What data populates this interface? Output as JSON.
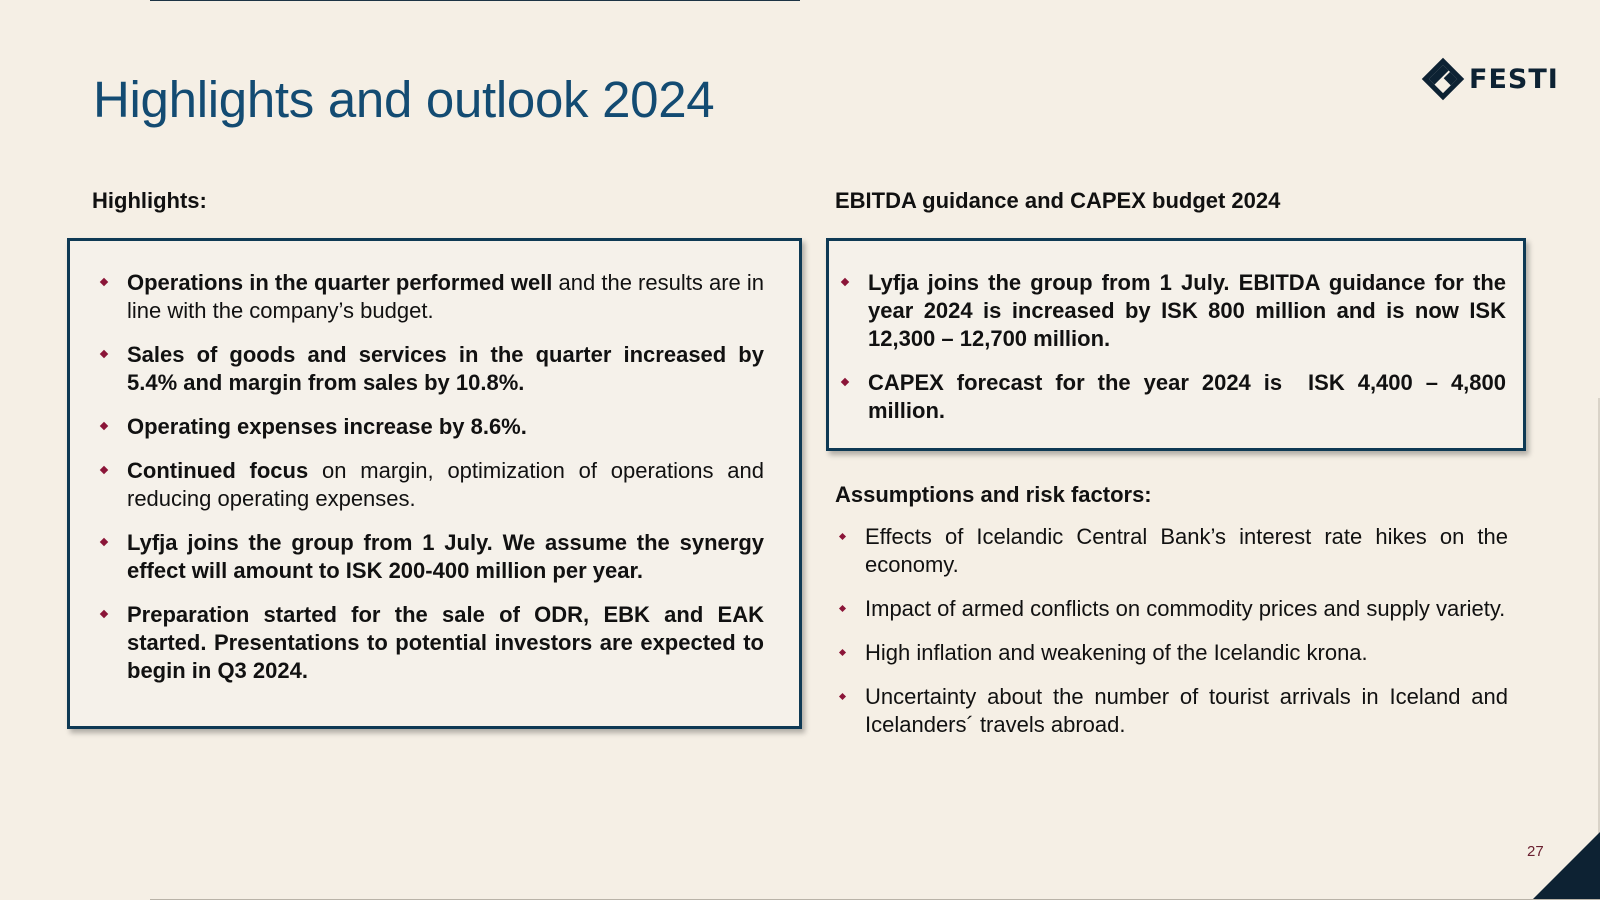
{
  "slide": {
    "title": "Highlights and outlook 2024",
    "logo_text": "FESTI",
    "page_number": "27"
  },
  "highlights": {
    "heading": "Highlights:",
    "items": [
      {
        "bold": "Operations in the quarter performed well",
        "rest": " and the results are in line with the company’s budget."
      },
      {
        "bold": "Sales of goods and services in the quarter increased by 5.4% and margin from sales by 10.8%.",
        "rest": ""
      },
      {
        "bold": "Operating expenses increase by 8.6%.",
        "rest": ""
      },
      {
        "bold": "Continued focus",
        "rest": " on margin, optimization of operations and reducing operating expenses."
      },
      {
        "bold": "Lyfja joins the group from 1 July. We assume the synergy effect will amount to ISK 200-400 million per year.",
        "rest": ""
      },
      {
        "bold": "Preparation started for the sale of ODR, EBK and EAK started. Presentations to potential investors are expected to begin in Q3 2024.",
        "rest": ""
      }
    ]
  },
  "guidance": {
    "heading": "EBITDA guidance and CAPEX budget 2024",
    "items": [
      "Lyfja joins the group from 1 July. EBITDA guidance for the year 2024 is increased by ISK 800 million and is now ISK 12,300 – 12,700 million.",
      "CAPEX forecast for the year 2024 is  ISK 4,400 – 4,800 million."
    ]
  },
  "risks": {
    "heading": "Assumptions and risk factors:",
    "items": [
      "Effects of Icelandic Central Bank’s interest rate hikes on the economy.",
      "Impact of armed conflicts on commodity prices and supply variety.",
      "High inflation and weakening of the Icelandic krona.",
      "Uncertainty about the number of tourist arrivals in Iceland and Icelanders´ travels abroad."
    ]
  },
  "colors": {
    "title": "#134b72",
    "box_border": "#0e3954",
    "bullet": "#8b1538",
    "background": "#f5efe5"
  }
}
